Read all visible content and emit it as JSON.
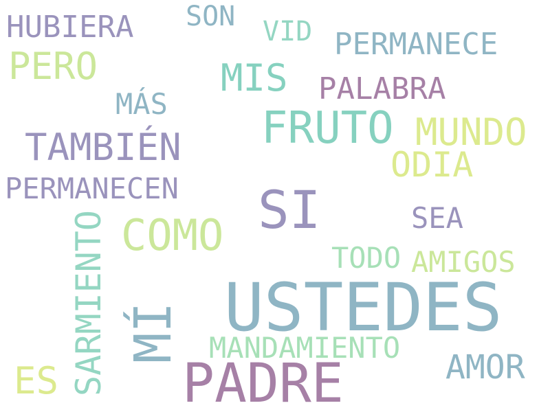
{
  "word_cloud": {
    "background": "#ffffff",
    "words": [
      {
        "id": "hubiera",
        "text": "HUBIERA",
        "color": "#9a93bc"
      },
      {
        "id": "son",
        "text": "SON",
        "color": "#8fb5c4"
      },
      {
        "id": "vid",
        "text": "VID",
        "color": "#94d6c2"
      },
      {
        "id": "permanece",
        "text": "PERMANECE",
        "color": "#8fb5c4"
      },
      {
        "id": "pero",
        "text": "PERO",
        "color": "#cbe79a"
      },
      {
        "id": "mis",
        "text": "MIS",
        "color": "#86d1bf"
      },
      {
        "id": "palabra",
        "text": "PALABRA",
        "color": "#a680a6"
      },
      {
        "id": "mas",
        "text": "MÁS",
        "color": "#8fb5c4"
      },
      {
        "id": "fruto",
        "text": "FRUTO",
        "color": "#86d1bf"
      },
      {
        "id": "mundo",
        "text": "MUNDO",
        "color": "#dcea8e"
      },
      {
        "id": "tambien",
        "text": "TAMBIÉN",
        "color": "#9a93bc"
      },
      {
        "id": "odia",
        "text": "ODIA",
        "color": "#dcea8e"
      },
      {
        "id": "permanecen",
        "text": "PERMANECEN",
        "color": "#9a93bc"
      },
      {
        "id": "si",
        "text": "SI",
        "color": "#9a93bc"
      },
      {
        "id": "sea",
        "text": "SEA",
        "color": "#9a93bc"
      },
      {
        "id": "como",
        "text": "COMO",
        "color": "#cbe79a"
      },
      {
        "id": "sarmiento",
        "text": "SARMIENTO",
        "color": "#94d6c2"
      },
      {
        "id": "todo",
        "text": "TODO",
        "color": "#a7e0b7"
      },
      {
        "id": "amigos",
        "text": "AMIGOS",
        "color": "#cbe79a"
      },
      {
        "id": "ustedes",
        "text": "USTEDES",
        "color": "#8fb5c4"
      },
      {
        "id": "mi",
        "text": "MÍ",
        "color": "#8fb5c4"
      },
      {
        "id": "mandamiento",
        "text": "MANDAMIENTO",
        "color": "#a7e0b7"
      },
      {
        "id": "amor",
        "text": "AMOR",
        "color": "#8fb5c4"
      },
      {
        "id": "es",
        "text": "ES",
        "color": "#dcea8e"
      },
      {
        "id": "padre",
        "text": "PADRE",
        "color": "#a680a6"
      }
    ]
  }
}
